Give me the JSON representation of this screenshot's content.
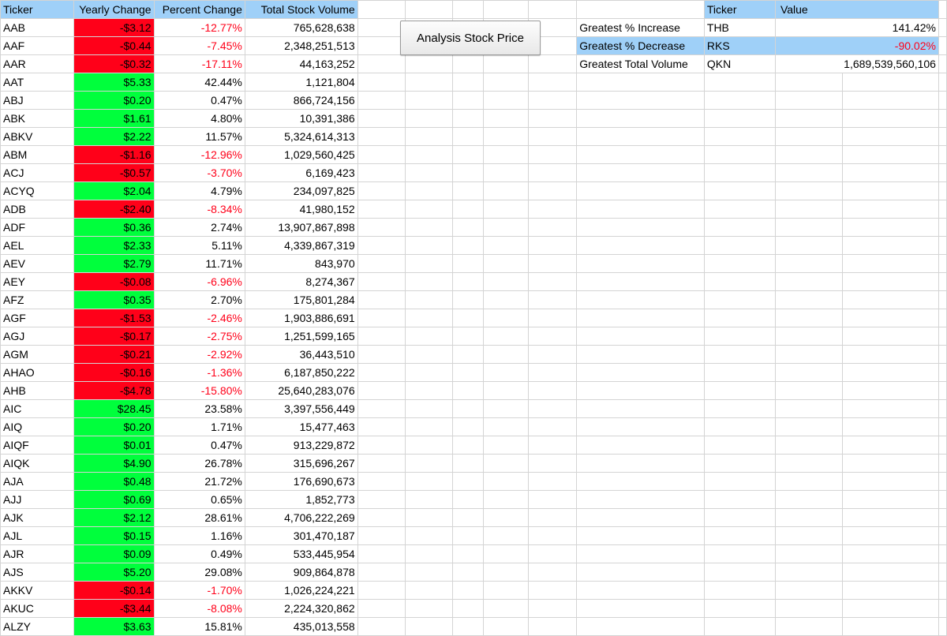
{
  "headers": [
    "Ticker",
    "Yearly Change",
    "Percent Change",
    "Total Stock Volume"
  ],
  "rows": [
    {
      "ticker": "AAB",
      "change": "-$3.12",
      "pct": "-12.77%",
      "volume": "765,628,638",
      "neg": true
    },
    {
      "ticker": "AAF",
      "change": "-$0.44",
      "pct": "-7.45%",
      "volume": "2,348,251,513",
      "neg": true
    },
    {
      "ticker": "AAR",
      "change": "-$0.32",
      "pct": "-17.11%",
      "volume": "44,163,252",
      "neg": true
    },
    {
      "ticker": "AAT",
      "change": "$5.33",
      "pct": "42.44%",
      "volume": "1,121,804",
      "neg": false
    },
    {
      "ticker": "ABJ",
      "change": "$0.20",
      "pct": "0.47%",
      "volume": "866,724,156",
      "neg": false
    },
    {
      "ticker": "ABK",
      "change": "$1.61",
      "pct": "4.80%",
      "volume": "10,391,386",
      "neg": false
    },
    {
      "ticker": "ABKV",
      "change": "$2.22",
      "pct": "11.57%",
      "volume": "5,324,614,313",
      "neg": false
    },
    {
      "ticker": "ABM",
      "change": "-$1.16",
      "pct": "-12.96%",
      "volume": "1,029,560,425",
      "neg": true
    },
    {
      "ticker": "ACJ",
      "change": "-$0.57",
      "pct": "-3.70%",
      "volume": "6,169,423",
      "neg": true
    },
    {
      "ticker": "ACYQ",
      "change": "$2.04",
      "pct": "4.79%",
      "volume": "234,097,825",
      "neg": false
    },
    {
      "ticker": "ADB",
      "change": "-$2.40",
      "pct": "-8.34%",
      "volume": "41,980,152",
      "neg": true
    },
    {
      "ticker": "ADF",
      "change": "$0.36",
      "pct": "2.74%",
      "volume": "13,907,867,898",
      "neg": false
    },
    {
      "ticker": "AEL",
      "change": "$2.33",
      "pct": "5.11%",
      "volume": "4,339,867,319",
      "neg": false
    },
    {
      "ticker": "AEV",
      "change": "$2.79",
      "pct": "11.71%",
      "volume": "843,970",
      "neg": false
    },
    {
      "ticker": "AEY",
      "change": "-$0.08",
      "pct": "-6.96%",
      "volume": "8,274,367",
      "neg": true
    },
    {
      "ticker": "AFZ",
      "change": "$0.35",
      "pct": "2.70%",
      "volume": "175,801,284",
      "neg": false
    },
    {
      "ticker": "AGF",
      "change": "-$1.53",
      "pct": "-2.46%",
      "volume": "1,903,886,691",
      "neg": true
    },
    {
      "ticker": "AGJ",
      "change": "-$0.17",
      "pct": "-2.75%",
      "volume": "1,251,599,165",
      "neg": true
    },
    {
      "ticker": "AGM",
      "change": "-$0.21",
      "pct": "-2.92%",
      "volume": "36,443,510",
      "neg": true
    },
    {
      "ticker": "AHAO",
      "change": "-$0.16",
      "pct": "-1.36%",
      "volume": "6,187,850,222",
      "neg": true
    },
    {
      "ticker": "AHB",
      "change": "-$4.78",
      "pct": "-15.80%",
      "volume": "25,640,283,076",
      "neg": true
    },
    {
      "ticker": "AIC",
      "change": "$28.45",
      "pct": "23.58%",
      "volume": "3,397,556,449",
      "neg": false
    },
    {
      "ticker": "AIQ",
      "change": "$0.20",
      "pct": "1.71%",
      "volume": "15,477,463",
      "neg": false
    },
    {
      "ticker": "AIQF",
      "change": "$0.01",
      "pct": "0.47%",
      "volume": "913,229,872",
      "neg": false
    },
    {
      "ticker": "AIQK",
      "change": "$4.90",
      "pct": "26.78%",
      "volume": "315,696,267",
      "neg": false
    },
    {
      "ticker": "AJA",
      "change": "$0.48",
      "pct": "21.72%",
      "volume": "176,690,673",
      "neg": false
    },
    {
      "ticker": "AJJ",
      "change": "$0.69",
      "pct": "0.65%",
      "volume": "1,852,773",
      "neg": false
    },
    {
      "ticker": "AJK",
      "change": "$2.12",
      "pct": "28.61%",
      "volume": "4,706,222,269",
      "neg": false
    },
    {
      "ticker": "AJL",
      "change": "$0.15",
      "pct": "1.16%",
      "volume": "301,470,187",
      "neg": false
    },
    {
      "ticker": "AJR",
      "change": "$0.09",
      "pct": "0.49%",
      "volume": "533,445,954",
      "neg": false
    },
    {
      "ticker": "AJS",
      "change": "$5.20",
      "pct": "29.08%",
      "volume": "909,864,878",
      "neg": false
    },
    {
      "ticker": "AKKV",
      "change": "-$0.14",
      "pct": "-1.70%",
      "volume": "1,026,224,221",
      "neg": true
    },
    {
      "ticker": "AKUC",
      "change": "-$3.44",
      "pct": "-8.08%",
      "volume": "2,224,320,862",
      "neg": true
    },
    {
      "ticker": "ALZY",
      "change": "$3.63",
      "pct": "15.81%",
      "volume": "435,013,558",
      "neg": false
    }
  ],
  "button": {
    "label": "Analysis Stock Price"
  },
  "summary": {
    "headers": {
      "ticker": "Ticker",
      "value": "Value"
    },
    "rows": [
      {
        "label": "Greatest % Increase",
        "ticker": "THB",
        "value": "141.42%",
        "neg": false,
        "highlight": false
      },
      {
        "label": "Greatest % Decrease",
        "ticker": "RKS",
        "value": "-90.02%",
        "neg": true,
        "highlight": true
      },
      {
        "label": "Greatest Total Volume",
        "ticker": "QKN",
        "value": "1,689,539,560,106",
        "neg": false,
        "highlight": false
      }
    ]
  },
  "colors": {
    "header_bg": "#9fd0f8",
    "positive_bg": "#00ff3c",
    "negative_bg": "#ff0019",
    "negative_text": "#ff0019"
  }
}
